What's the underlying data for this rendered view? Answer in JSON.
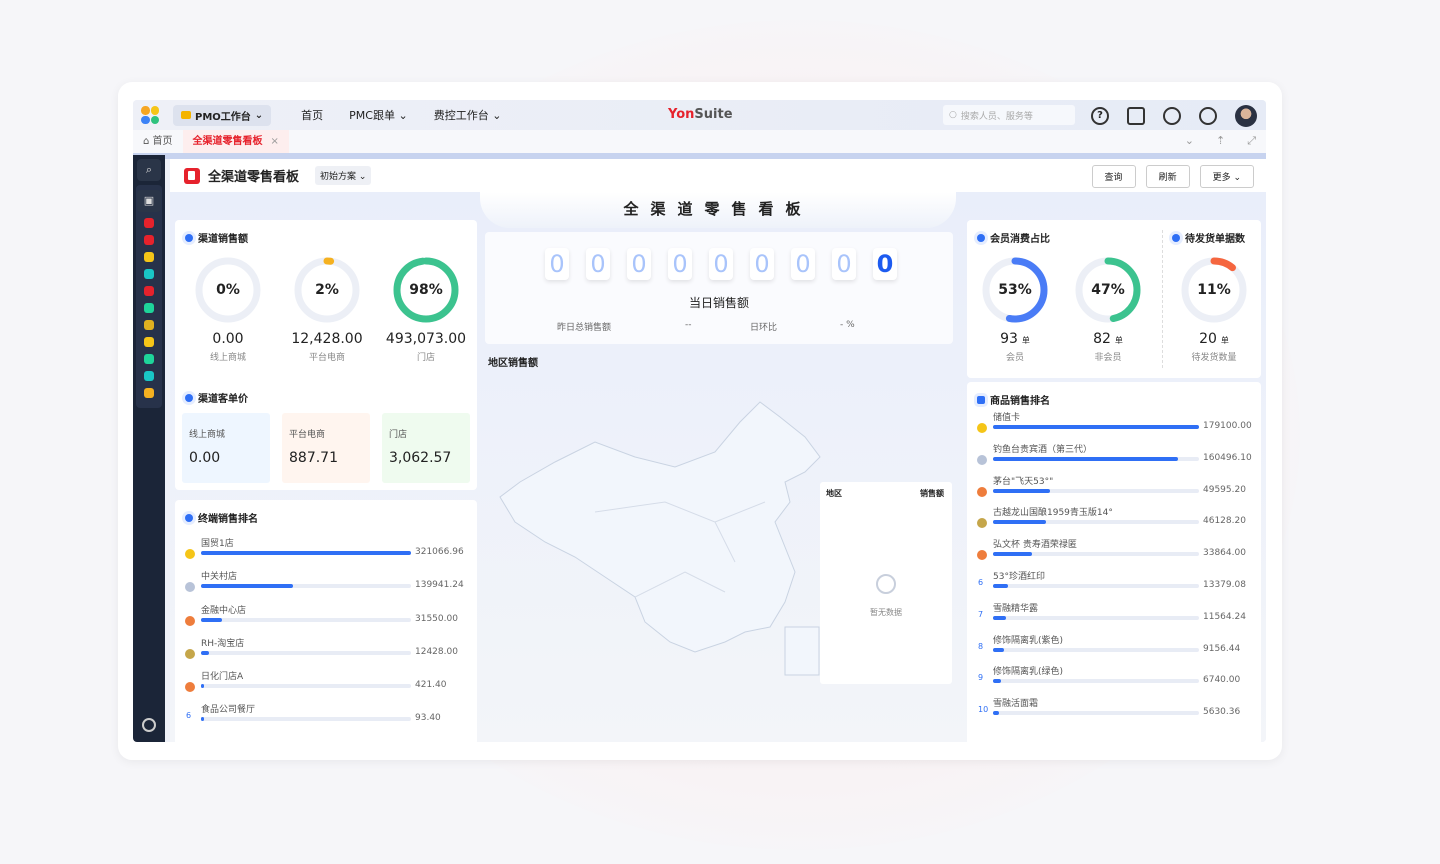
{
  "topbar": {
    "workspace": "PMO工作台",
    "nav": [
      "首页",
      "PMC跟单",
      "费控工作台"
    ],
    "brand_red": "Yon",
    "brand_gray": "Suite",
    "search_placeholder": "搜索人员、服务等"
  },
  "tabs": {
    "home": "首页",
    "active": "全渠道零售看板",
    "close": "×"
  },
  "header": {
    "title": "全渠道零售看板",
    "plan": "初始方案",
    "buttons": [
      "查询",
      "刷新",
      "更多"
    ]
  },
  "dashboard_title": "全渠道零售看板",
  "channel_sales": {
    "title": "渠道销售额",
    "items": [
      {
        "pct": "0%",
        "value_pct": 0,
        "amount": "0.00",
        "label": "线上商城",
        "color": "#f5b120"
      },
      {
        "pct": "2%",
        "value_pct": 2,
        "amount": "12,428.00",
        "label": "平台电商",
        "color": "#f5b120"
      },
      {
        "pct": "98%",
        "value_pct": 98,
        "amount": "493,073.00",
        "label": "门店",
        "color": "#3cc38f"
      }
    ]
  },
  "unit_price": {
    "title": "渠道客单价",
    "items": [
      {
        "label": "线上商城",
        "value": "0.00",
        "bg": "#eef6ff"
      },
      {
        "label": "平台电商",
        "value": "887.71",
        "bg": "#fff5ef"
      },
      {
        "label": "门店",
        "value": "3,062.57",
        "bg": "#effbef"
      }
    ]
  },
  "store_ranking": {
    "title": "终端销售排名",
    "items": [
      {
        "name": "国贸1店",
        "value": "321066.96",
        "amount": 321066.96
      },
      {
        "name": "中关村店",
        "value": "139941.24",
        "amount": 139941.24
      },
      {
        "name": "金融中心店",
        "value": "31550.00",
        "amount": 31550
      },
      {
        "name": "RH-淘宝店",
        "value": "12428.00",
        "amount": 12428
      },
      {
        "name": "日化门店A",
        "value": "421.40",
        "amount": 421.4
      },
      {
        "name": "食品公司餐厅",
        "value": "93.40",
        "amount": 93.4
      }
    ]
  },
  "counter": {
    "digits": [
      "0",
      "0",
      "0",
      "0",
      "0",
      "0",
      "0",
      "0",
      "0"
    ],
    "label": "当日销售额",
    "yesterday_label": "昨日总销售额",
    "yesterday_value": "--",
    "ratio_label": "日环比",
    "ratio_value": "- %"
  },
  "region": {
    "title": "地区销售额",
    "col_region": "地区",
    "col_sales": "销售额",
    "empty": "暂无数据"
  },
  "member": {
    "title": "会员消费占比",
    "items": [
      {
        "pct": "53%",
        "value_pct": 53,
        "count": "93",
        "unit": "单",
        "label": "会员",
        "color": "#4a7cf6"
      },
      {
        "pct": "47%",
        "value_pct": 47,
        "count": "82",
        "unit": "单",
        "label": "非会员",
        "color": "#3cc38f"
      }
    ]
  },
  "pending": {
    "title": "待发货单据数",
    "pct": "11%",
    "value_pct": 11,
    "count": "20",
    "unit": "单",
    "label": "待发货数量",
    "color": "#f5663f"
  },
  "product_ranking": {
    "title": "商品销售排名",
    "items": [
      {
        "name": "储值卡",
        "value": "179100.00",
        "amount": 179100
      },
      {
        "name": "钓鱼台贵宾酒（第三代）",
        "value": "160496.10",
        "amount": 160496.1
      },
      {
        "name": "茅台\"飞天53°\"",
        "value": "49595.20",
        "amount": 49595.2
      },
      {
        "name": "古越龙山国酿1959青玉版14°",
        "value": "46128.20",
        "amount": 46128.2
      },
      {
        "name": "弘文杯 贵寿酒荣禄匿",
        "value": "33864.00",
        "amount": 33864
      },
      {
        "name": "53°珍酒红印",
        "value": "13379.08",
        "amount": 13379.08
      },
      {
        "name": "雪融精华露",
        "value": "11564.24",
        "amount": 11564.24
      },
      {
        "name": "修饰隔离乳(紫色)",
        "value": "9156.44",
        "amount": 9156.44
      },
      {
        "name": "修饰隔离乳(绿色)",
        "value": "6740.00",
        "amount": 6740
      },
      {
        "name": "雪融活面霜",
        "value": "5630.36",
        "amount": 5630.36
      }
    ]
  },
  "medal_colors": [
    "#f5c518",
    "#b8c3d8",
    "#ee7d3c",
    "#c5a64a",
    "#ee7d3c"
  ],
  "sidebar_colors": [
    "#e6222c",
    "#e6222c",
    "#f5c518",
    "#19c6c6",
    "#e6222c",
    "#1ed49a",
    "#e0b020",
    "#f5c518",
    "#1ed49a",
    "#19c6c6",
    "#f5b120"
  ]
}
